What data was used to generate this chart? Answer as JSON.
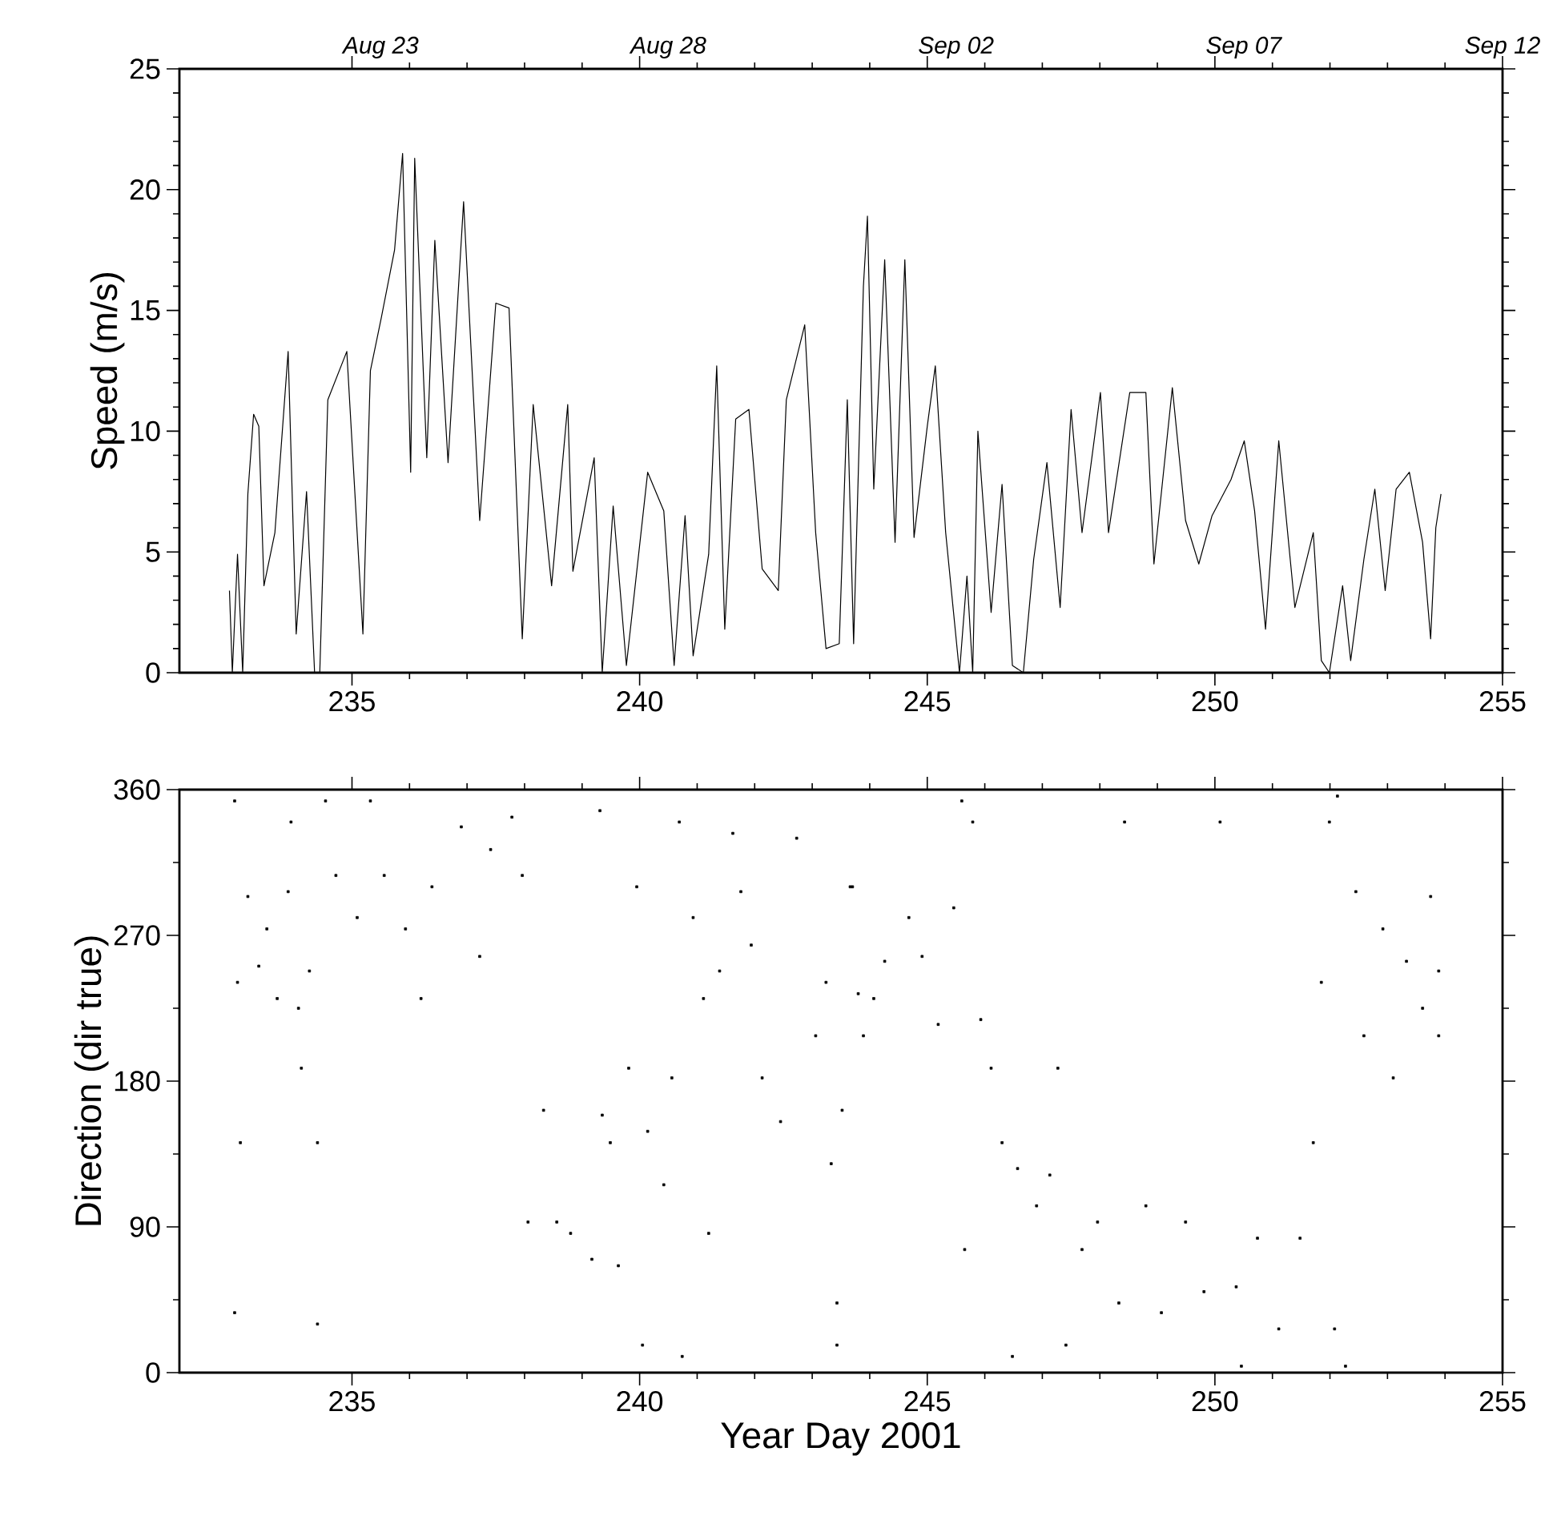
{
  "chart_data": [
    {
      "type": "line",
      "ylabel": "Speed (m/s)",
      "color": "#000000",
      "xlim": [
        232,
        255
      ],
      "xticks": [
        235,
        240,
        245,
        250,
        255
      ],
      "ylim": [
        0,
        25
      ],
      "yticks": [
        0,
        5,
        10,
        15,
        20,
        25
      ],
      "x2lim": [
        "2001-08-20",
        "2001-09-12"
      ],
      "x2ticks": [
        {
          "value": "2001-08-23T12:00",
          "label": "Aug 23"
        },
        {
          "value": "2001-08-28T12:00",
          "label": "Aug 28"
        },
        {
          "value": "2001-09-02T12:00",
          "label": "Sep 02"
        },
        {
          "value": "2001-09-07T12:00",
          "label": "Sep 07"
        },
        {
          "value": "2001-09-12",
          "label": "Sep 12"
        }
      ],
      "x": [
        232.87,
        232.92,
        233.01,
        233.1,
        233.19,
        233.29,
        233.38,
        233.47,
        233.66,
        233.89,
        234.03,
        234.21,
        234.35,
        234.44,
        234.58,
        234.91,
        235.19,
        235.32,
        235.51,
        235.74,
        235.88,
        236.02,
        236.09,
        236.3,
        236.44,
        236.67,
        236.94,
        237.22,
        237.5,
        237.73,
        237.96,
        238.15,
        238.47,
        238.75,
        238.84,
        239.21,
        239.35,
        239.54,
        239.77,
        240.14,
        240.42,
        240.6,
        240.79,
        240.93,
        241.2,
        241.34,
        241.48,
        241.67,
        241.9,
        242.13,
        242.41,
        242.55,
        242.87,
        243.06,
        243.24,
        243.47,
        243.61,
        243.72,
        243.89,
        243.96,
        244.07,
        244.26,
        244.44,
        244.61,
        244.77,
        245.0,
        245.14,
        245.32,
        245.56,
        245.69,
        245.79,
        245.88,
        246.11,
        246.3,
        246.48,
        246.67,
        246.85,
        247.08,
        247.31,
        247.5,
        247.69,
        248.01,
        248.15,
        248.52,
        248.8,
        248.94,
        249.26,
        249.49,
        249.72,
        249.95,
        250.28,
        250.51,
        250.69,
        250.88,
        251.11,
        251.39,
        251.71,
        251.85,
        251.99,
        252.22,
        252.36,
        252.59,
        252.78,
        252.96,
        253.15,
        253.38,
        253.61,
        253.75,
        253.84,
        253.93
      ],
      "values": [
        3.4,
        0,
        4.9,
        0,
        7.4,
        10.7,
        10.2,
        3.6,
        5.8,
        13.3,
        1.6,
        7.5,
        0,
        0,
        11.3,
        13.3,
        1.6,
        12.5,
        14.7,
        17.5,
        21.5,
        8.3,
        21.3,
        8.9,
        17.9,
        8.7,
        19.5,
        6.3,
        15.3,
        15.1,
        1.4,
        11.1,
        3.6,
        11.1,
        4.2,
        8.9,
        0,
        6.9,
        0.3,
        8.3,
        6.7,
        0.3,
        6.5,
        0.7,
        4.9,
        12.7,
        1.8,
        10.5,
        10.9,
        4.3,
        3.4,
        11.3,
        14.4,
        5.8,
        1.0,
        1.2,
        11.3,
        1.2,
        16.0,
        18.9,
        7.6,
        17.1,
        5.4,
        17.1,
        5.6,
        10.2,
        12.7,
        5.8,
        0,
        4.0,
        0,
        10.0,
        2.5,
        7.8,
        0.3,
        0,
        4.7,
        8.7,
        2.7,
        10.9,
        5.8,
        11.6,
        5.8,
        11.6,
        11.6,
        4.5,
        11.8,
        6.3,
        4.5,
        6.5,
        8.0,
        9.6,
        6.7,
        1.8,
        9.6,
        2.7,
        5.8,
        0.5,
        0,
        3.6,
        0.5,
        4.7,
        7.6,
        3.4,
        7.6,
        8.3,
        5.4,
        1.4,
        6.0,
        7.4
      ]
    },
    {
      "type": "scatter",
      "ylabel": "Direction (dir true)",
      "xlabel": "Year Day 2001",
      "color": "#000000",
      "marker": "square",
      "xlim": [
        232,
        255
      ],
      "xticks": [
        235,
        240,
        245,
        250,
        255
      ],
      "ylim": [
        0,
        360
      ],
      "yticks": [
        0,
        90,
        180,
        270,
        360
      ],
      "x": [
        232.96,
        233.01,
        233.06,
        232.96,
        233.19,
        233.38,
        233.52,
        233.7,
        233.89,
        233.94,
        234.07,
        234.12,
        234.26,
        234.4,
        234.4,
        234.54,
        234.72,
        235.09,
        235.32,
        235.56,
        235.93,
        236.2,
        236.39,
        236.9,
        237.22,
        237.41,
        237.78,
        237.96,
        238.06,
        238.33,
        238.56,
        238.8,
        239.17,
        239.31,
        239.35,
        239.49,
        239.63,
        239.81,
        240.05,
        239.95,
        240.14,
        240.42,
        240.56,
        240.69,
        240.74,
        240.93,
        241.11,
        241.2,
        241.39,
        241.62,
        241.76,
        241.94,
        242.13,
        242.45,
        242.73,
        243.06,
        243.24,
        243.33,
        243.43,
        243.7,
        243.8,
        243.52,
        243.43,
        243.66,
        243.89,
        244.07,
        244.26,
        244.68,
        244.91,
        245.19,
        245.46,
        245.6,
        245.65,
        245.79,
        245.93,
        246.11,
        246.3,
        246.48,
        246.57,
        246.9,
        247.13,
        247.27,
        247.41,
        247.69,
        247.96,
        248.33,
        248.43,
        248.8,
        249.07,
        249.49,
        249.81,
        250.09,
        250.37,
        250.46,
        250.74,
        251.11,
        251.48,
        251.71,
        251.85,
        251.99,
        252.13,
        252.08,
        252.27,
        252.45,
        252.59,
        252.92,
        253.1,
        253.33,
        253.61,
        253.75,
        253.89,
        253.89
      ],
      "values": [
        353,
        241,
        142,
        37,
        294,
        251,
        274,
        231,
        297,
        340,
        225,
        188,
        248,
        142,
        30,
        353,
        307,
        281,
        353,
        307,
        274,
        231,
        300,
        337,
        257,
        323,
        343,
        307,
        93,
        162,
        93,
        86,
        70,
        347,
        159,
        142,
        66,
        188,
        17,
        300,
        149,
        116,
        182,
        340,
        10,
        281,
        231,
        86,
        248,
        333,
        297,
        264,
        182,
        155,
        330,
        208,
        241,
        129,
        17,
        300,
        234,
        162,
        43,
        300,
        208,
        231,
        254,
        281,
        257,
        215,
        287,
        353,
        76,
        340,
        218,
        188,
        142,
        10,
        126,
        103,
        122,
        188,
        17,
        76,
        93,
        43,
        340,
        103,
        37,
        93,
        50,
        340,
        53,
        4,
        83,
        27,
        83,
        142,
        241,
        340,
        356,
        27,
        4,
        297,
        208,
        274,
        182,
        254,
        225,
        294,
        208,
        248
      ]
    }
  ]
}
